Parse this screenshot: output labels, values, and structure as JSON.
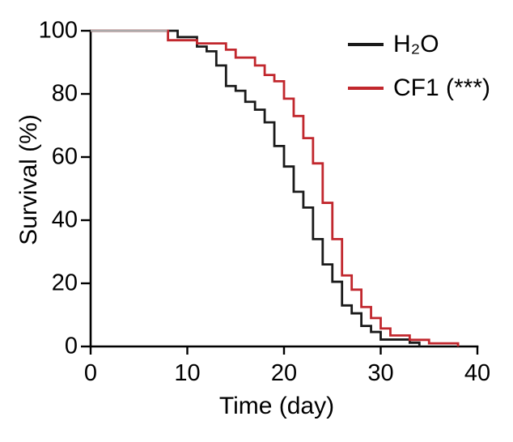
{
  "chart_data": {
    "type": "line",
    "subtype": "kaplan-meier-survival-step",
    "title": "",
    "xlabel": "Time (day)",
    "ylabel": "Survival (%)",
    "xlim": [
      0,
      40
    ],
    "ylim": [
      0,
      100
    ],
    "x_ticks": [
      0,
      10,
      20,
      30,
      40
    ],
    "y_ticks": [
      0,
      20,
      40,
      60,
      80,
      100
    ],
    "grid": false,
    "legend_position": "top-right-inside",
    "step_mode": "post",
    "series": [
      {
        "name": "H₂O",
        "color": "#1a1a1a",
        "points": [
          [
            0,
            100
          ],
          [
            9,
            98
          ],
          [
            11,
            95
          ],
          [
            12,
            93.5
          ],
          [
            13,
            89
          ],
          [
            14,
            82.5
          ],
          [
            15,
            81
          ],
          [
            16,
            77.5
          ],
          [
            17,
            75
          ],
          [
            18,
            71
          ],
          [
            19,
            63.5
          ],
          [
            20,
            57
          ],
          [
            21,
            49
          ],
          [
            22,
            44
          ],
          [
            23,
            34
          ],
          [
            24,
            26
          ],
          [
            25,
            20.5
          ],
          [
            26,
            13
          ],
          [
            27,
            10.5
          ],
          [
            28,
            6.5
          ],
          [
            29,
            4.6
          ],
          [
            30,
            2.2
          ],
          [
            33,
            1.2
          ],
          [
            34,
            0
          ]
        ]
      },
      {
        "name": "CF1 (***)",
        "color": "#c1272d",
        "points": [
          [
            0,
            100
          ],
          [
            8,
            97
          ],
          [
            11,
            96
          ],
          [
            14,
            94
          ],
          [
            15,
            91.5
          ],
          [
            17,
            89
          ],
          [
            18,
            86
          ],
          [
            19,
            84
          ],
          [
            20,
            78.5
          ],
          [
            21,
            73
          ],
          [
            22,
            66
          ],
          [
            23,
            58
          ],
          [
            24,
            45.5
          ],
          [
            25,
            34
          ],
          [
            26,
            22.5
          ],
          [
            27,
            18
          ],
          [
            28,
            12.5
          ],
          [
            29,
            9
          ],
          [
            30,
            5.7
          ],
          [
            31,
            3.5
          ],
          [
            33,
            2.1
          ],
          [
            35,
            1
          ],
          [
            38,
            0
          ]
        ]
      }
    ],
    "overlap_segment": {
      "x_range": [
        0,
        8
      ],
      "y": 100,
      "color": "#a9a9a9"
    }
  },
  "axes": {
    "color": "#000000"
  }
}
